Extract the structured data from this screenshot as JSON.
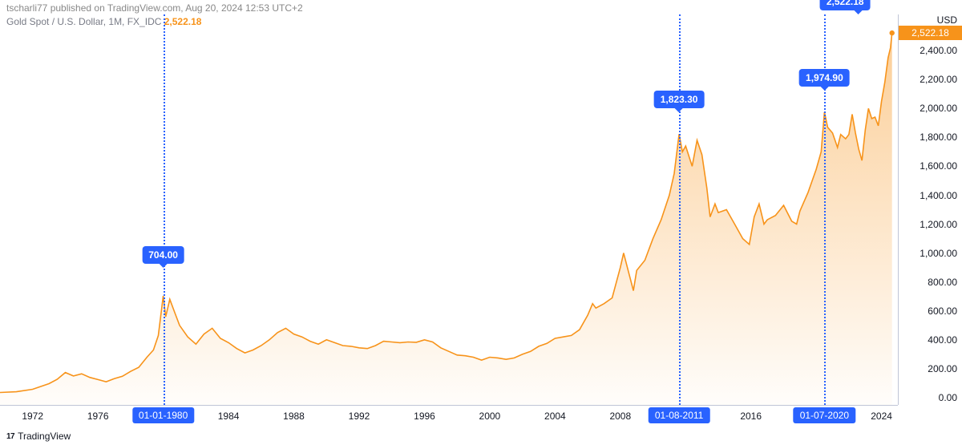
{
  "header": {
    "publisher_text": "tscharli77 published on TradingView.com, Aug 20, 2024 12:53 UTC+2"
  },
  "title": {
    "symbol": "Gold Spot / U.S. Dollar, 1M, FX_IDC",
    "last_value": "2,522.18"
  },
  "footer": {
    "logo": "17",
    "brand": "TradingView"
  },
  "colors": {
    "line": "#f7931a",
    "fill_top": "rgba(247,147,26,0.45)",
    "fill_bottom": "rgba(247,147,26,0.02)",
    "callout_bg": "#2962ff",
    "y_badge_bg": "#f7931a",
    "grid": "#c0c5d6",
    "text": "#131722",
    "muted": "#787b86"
  },
  "chart": {
    "type": "area",
    "x_range_years": [
      1970,
      2025
    ],
    "y_range": [
      -50,
      2650
    ],
    "y_ticks": [
      0,
      200,
      400,
      600,
      800,
      1000,
      1200,
      1400,
      1600,
      1800,
      2000,
      2200,
      2400
    ],
    "y_tick_labels": [
      "0.00",
      "200.00",
      "400.00",
      "600.00",
      "800.00",
      "1,000.00",
      "1,200.00",
      "1,400.00",
      "1,600.00",
      "1,800.00",
      "2,000.00",
      "2,200.00",
      "2,400.00"
    ],
    "y_header": "USD",
    "y_badge": {
      "value": 2522.18,
      "label": "2,522.18"
    },
    "x_ticks_years": [
      1972,
      1976,
      1984,
      1988,
      1992,
      1996,
      2000,
      2004,
      2008,
      2016,
      2024
    ],
    "x_badges": [
      {
        "year": 1980.0,
        "label": "01-01-1980"
      },
      {
        "year": 2011.6,
        "label": "01-08-2011"
      },
      {
        "year": 2020.5,
        "label": "01-07-2020"
      }
    ],
    "vlines_years": [
      1980.0,
      2011.6,
      2020.5
    ],
    "callouts": [
      {
        "year": 1980.0,
        "value": 704.0,
        "label": "704.00",
        "dy": -40,
        "align": "center"
      },
      {
        "year": 2011.6,
        "value": 1823.3,
        "label": "1,823.30",
        "dy": -32,
        "align": "center"
      },
      {
        "year": 2020.5,
        "value": 1974.9,
        "label": "1,974.90",
        "dy": -32,
        "align": "center"
      },
      {
        "year": 2023.0,
        "value": 2522.18,
        "label": "2,522.18",
        "dy": -28,
        "align": "right"
      }
    ],
    "series": [
      [
        1970.0,
        36
      ],
      [
        1971.0,
        41
      ],
      [
        1972.0,
        58
      ],
      [
        1973.0,
        97
      ],
      [
        1973.5,
        127
      ],
      [
        1974.0,
        174
      ],
      [
        1974.5,
        150
      ],
      [
        1975.0,
        165
      ],
      [
        1975.5,
        140
      ],
      [
        1976.0,
        125
      ],
      [
        1976.5,
        110
      ],
      [
        1977.0,
        132
      ],
      [
        1977.5,
        148
      ],
      [
        1978.0,
        182
      ],
      [
        1978.5,
        210
      ],
      [
        1979.0,
        280
      ],
      [
        1979.4,
        330
      ],
      [
        1979.7,
        430
      ],
      [
        1980.0,
        704
      ],
      [
        1980.15,
        560
      ],
      [
        1980.4,
        680
      ],
      [
        1980.7,
        590
      ],
      [
        1981.0,
        500
      ],
      [
        1981.5,
        420
      ],
      [
        1982.0,
        370
      ],
      [
        1982.5,
        440
      ],
      [
        1983.0,
        480
      ],
      [
        1983.5,
        410
      ],
      [
        1984.0,
        380
      ],
      [
        1984.5,
        340
      ],
      [
        1985.0,
        310
      ],
      [
        1985.5,
        330
      ],
      [
        1986.0,
        360
      ],
      [
        1986.5,
        400
      ],
      [
        1987.0,
        450
      ],
      [
        1987.5,
        480
      ],
      [
        1988.0,
        440
      ],
      [
        1988.5,
        420
      ],
      [
        1989.0,
        390
      ],
      [
        1989.5,
        370
      ],
      [
        1990.0,
        400
      ],
      [
        1990.5,
        380
      ],
      [
        1991.0,
        360
      ],
      [
        1991.5,
        355
      ],
      [
        1992.0,
        345
      ],
      [
        1992.5,
        340
      ],
      [
        1993.0,
        360
      ],
      [
        1993.5,
        390
      ],
      [
        1994.0,
        385
      ],
      [
        1994.5,
        380
      ],
      [
        1995.0,
        385
      ],
      [
        1995.5,
        383
      ],
      [
        1996.0,
        400
      ],
      [
        1996.5,
        385
      ],
      [
        1997.0,
        345
      ],
      [
        1997.5,
        320
      ],
      [
        1998.0,
        295
      ],
      [
        1998.5,
        290
      ],
      [
        1999.0,
        280
      ],
      [
        1999.5,
        260
      ],
      [
        2000.0,
        280
      ],
      [
        2000.5,
        275
      ],
      [
        2001.0,
        265
      ],
      [
        2001.5,
        275
      ],
      [
        2002.0,
        300
      ],
      [
        2002.5,
        320
      ],
      [
        2003.0,
        355
      ],
      [
        2003.5,
        375
      ],
      [
        2004.0,
        410
      ],
      [
        2004.5,
        420
      ],
      [
        2005.0,
        430
      ],
      [
        2005.5,
        470
      ],
      [
        2006.0,
        570
      ],
      [
        2006.3,
        650
      ],
      [
        2006.5,
        620
      ],
      [
        2007.0,
        650
      ],
      [
        2007.5,
        690
      ],
      [
        2008.0,
        900
      ],
      [
        2008.2,
        1000
      ],
      [
        2008.5,
        870
      ],
      [
        2008.8,
        740
      ],
      [
        2009.0,
        880
      ],
      [
        2009.5,
        950
      ],
      [
        2010.0,
        1100
      ],
      [
        2010.5,
        1230
      ],
      [
        2011.0,
        1400
      ],
      [
        2011.3,
        1550
      ],
      [
        2011.6,
        1823
      ],
      [
        2011.8,
        1700
      ],
      [
        2012.0,
        1740
      ],
      [
        2012.4,
        1600
      ],
      [
        2012.7,
        1780
      ],
      [
        2013.0,
        1680
      ],
      [
        2013.3,
        1450
      ],
      [
        2013.5,
        1250
      ],
      [
        2013.8,
        1340
      ],
      [
        2014.0,
        1280
      ],
      [
        2014.5,
        1300
      ],
      [
        2015.0,
        1200
      ],
      [
        2015.5,
        1100
      ],
      [
        2015.9,
        1060
      ],
      [
        2016.2,
        1250
      ],
      [
        2016.5,
        1340
      ],
      [
        2016.8,
        1200
      ],
      [
        2017.0,
        1230
      ],
      [
        2017.5,
        1260
      ],
      [
        2018.0,
        1330
      ],
      [
        2018.5,
        1220
      ],
      [
        2018.8,
        1200
      ],
      [
        2019.0,
        1290
      ],
      [
        2019.5,
        1420
      ],
      [
        2020.0,
        1580
      ],
      [
        2020.3,
        1700
      ],
      [
        2020.5,
        1975
      ],
      [
        2020.7,
        1870
      ],
      [
        2021.0,
        1830
      ],
      [
        2021.3,
        1730
      ],
      [
        2021.5,
        1820
      ],
      [
        2021.8,
        1790
      ],
      [
        2022.0,
        1820
      ],
      [
        2022.2,
        1960
      ],
      [
        2022.4,
        1830
      ],
      [
        2022.6,
        1720
      ],
      [
        2022.8,
        1640
      ],
      [
        2023.0,
        1850
      ],
      [
        2023.2,
        2000
      ],
      [
        2023.4,
        1930
      ],
      [
        2023.6,
        1940
      ],
      [
        2023.8,
        1880
      ],
      [
        2024.0,
        2050
      ],
      [
        2024.2,
        2180
      ],
      [
        2024.4,
        2350
      ],
      [
        2024.55,
        2420
      ],
      [
        2024.64,
        2522
      ]
    ]
  }
}
